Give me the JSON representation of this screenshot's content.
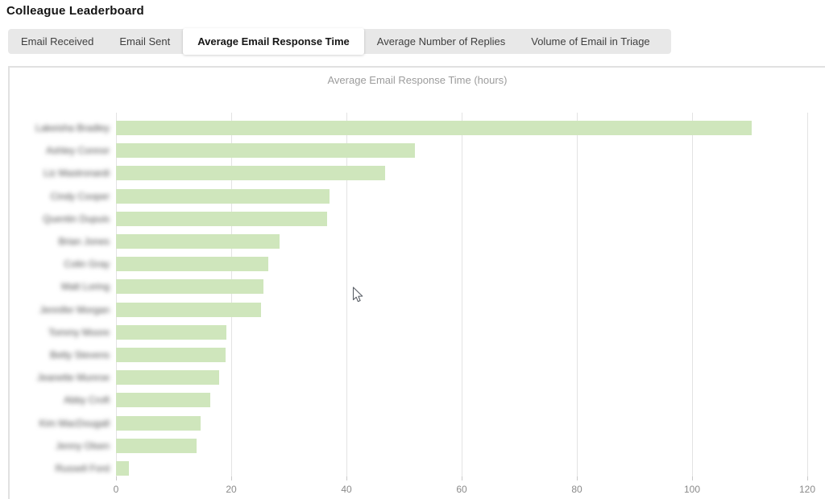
{
  "page": {
    "title": "Colleague Leaderboard"
  },
  "tabs": [
    {
      "id": "email-received",
      "label": "Email Received",
      "active": false
    },
    {
      "id": "email-sent",
      "label": "Email Sent",
      "active": false
    },
    {
      "id": "avg-email-response-time",
      "label": "Average Email Response Time",
      "active": true
    },
    {
      "id": "avg-number-of-replies",
      "label": "Average Number of Replies",
      "active": false
    },
    {
      "id": "volume-of-email-in-triage",
      "label": "Volume of Email in Triage",
      "active": false
    }
  ],
  "chart_data": {
    "type": "bar",
    "orientation": "horizontal",
    "title": "Average Email Response Time (hours)",
    "categories_blurred": true,
    "categories": [
      "Lakeisha Bradley",
      "Ashley Connor",
      "Liz Mastronardi",
      "Cindy Cooper",
      "Quentin Dupuis",
      "Brian Jones",
      "Colin Gray",
      "Matt Loring",
      "Jennifer Morgan",
      "Tommy Moore",
      "Betty Stevens",
      "Jeanette Munroe",
      "Abby Croft",
      "Kim MacDougall",
      "Jenny Olsen",
      "Russell Ford"
    ],
    "values": [
      110.4,
      51.9,
      46.7,
      37.0,
      36.7,
      28.4,
      26.5,
      25.6,
      25.2,
      19.2,
      19.0,
      17.9,
      16.3,
      14.7,
      14.0,
      2.2
    ],
    "xticks": [
      0,
      20,
      40,
      60,
      80,
      100,
      120
    ],
    "xlim": [
      0,
      120
    ],
    "ylabel": "",
    "xlabel": "",
    "grid": "vertical",
    "legend": "none",
    "bar_color": "#cfe6bc",
    "gridline_color": "#e3e3e3",
    "tick_label_color": "#8a8a8a",
    "title_color": "#9c9c9c"
  }
}
